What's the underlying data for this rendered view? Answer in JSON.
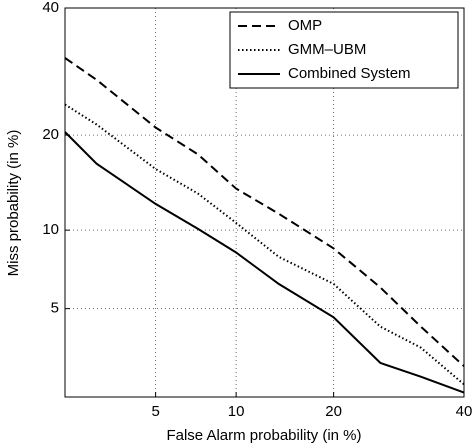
{
  "chart_data": {
    "type": "line",
    "scale": "probit",
    "xlabel": "False Alarm probability (in %)",
    "ylabel": "Miss probability (in %)",
    "xlim": [
      2,
      40
    ],
    "ylim": [
      2,
      40
    ],
    "xticks": [
      5,
      10,
      20,
      40
    ],
    "yticks": [
      5,
      10,
      20,
      40
    ],
    "grid": true,
    "legend": "upper right",
    "x": [
      2,
      2.8,
      5,
      7.3,
      10,
      13.8,
      20,
      26.4,
      32.7,
      40
    ],
    "series": [
      {
        "name": "OMP",
        "color": "#000000",
        "linestyle": "dashed",
        "values": [
          31.4,
          27.9,
          21,
          17.6,
          13.8,
          11.4,
          8.6,
          6.1,
          4.2,
          2.8
        ]
      },
      {
        "name": "GMM–UBM",
        "color": "#000000",
        "linestyle": "dotted",
        "values": [
          24.2,
          21.4,
          15.9,
          13.3,
          10.6,
          8,
          6.3,
          4.2,
          3.4,
          2.3
        ]
      },
      {
        "name": "Combined System",
        "color": "#000000",
        "linestyle": "solid",
        "values": [
          20.4,
          16.5,
          12.3,
          10.1,
          8.3,
          6.3,
          4.6,
          2.9,
          2.5,
          2.1
        ]
      }
    ]
  }
}
